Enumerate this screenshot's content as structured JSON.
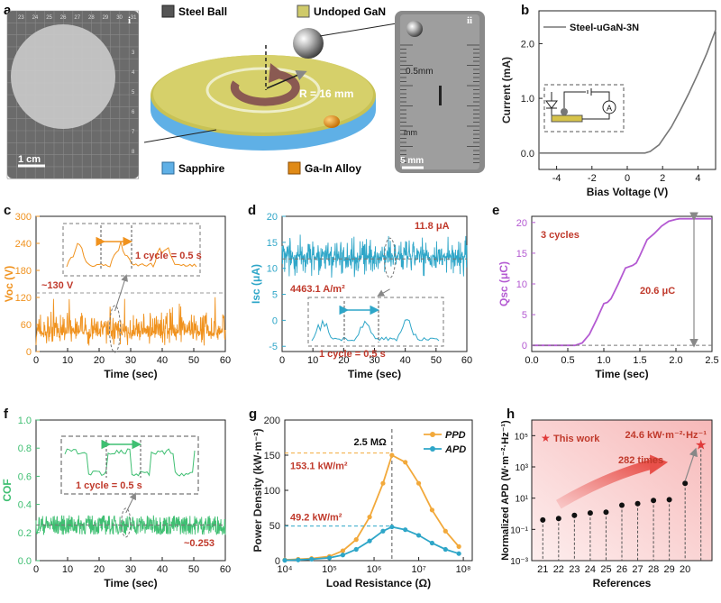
{
  "panel_a": {
    "letter": "a",
    "legend": {
      "steel_ball": "Steel Ball",
      "undoped_gan": "Undoped GaN",
      "sapphire": "Sapphire",
      "ga_in": "Ga-In Alloy"
    },
    "radius_label": "R = 16 mm",
    "inset_i": {
      "tag": "i",
      "scale": "1 cm",
      "ruler_top": [
        "23",
        "24",
        "25",
        "26",
        "27",
        "28",
        "29",
        "30",
        "31"
      ],
      "ruler_left": [
        "3",
        "4",
        "5",
        "6",
        "7",
        "8"
      ]
    },
    "inset_ii": {
      "tag": "ii",
      "scale": "5 mm",
      "mark": "0.5mm",
      "unit": "mm"
    },
    "colors": {
      "disk_top": "#c8c254",
      "sapphire": "#5fb0e6",
      "ring": "#8a5a52",
      "ga_in": "#e08a16"
    }
  },
  "chart_data": [
    {
      "panel": "b",
      "type": "line",
      "xlabel": "Bias Voltage (V)",
      "ylabel": "Current (mA)",
      "xlim": [
        -5,
        5
      ],
      "ylim": [
        -0.3,
        2.6
      ],
      "xticks": [
        "-4",
        "-2",
        "0",
        "2",
        "4"
      ],
      "xtick_values": [
        -4,
        -2,
        0,
        2,
        4
      ],
      "yticks": [
        "0.0",
        "1.0",
        "2.0"
      ],
      "ytick_values": [
        0,
        1,
        2
      ],
      "series": [
        {
          "name": "Steel-uGaN-3N",
          "color": "#777777",
          "x": [
            -5,
            -3,
            -1,
            0,
            1,
            1.3,
            1.8,
            2.5,
            3,
            3.5,
            4,
            4.5,
            5
          ],
          "y": [
            0,
            0,
            0,
            0,
            0,
            0.03,
            0.15,
            0.48,
            0.78,
            1.1,
            1.45,
            1.82,
            2.25
          ]
        }
      ]
    },
    {
      "panel": "c",
      "type": "line",
      "signal": "Voc",
      "ylabel": "Voc (V)",
      "xlabel": "Time (sec)",
      "xlim": [
        0,
        60
      ],
      "ylim": [
        0,
        300
      ],
      "xticks": [
        "0",
        "10",
        "20",
        "30",
        "40",
        "50",
        "60"
      ],
      "xtick_values": [
        0,
        10,
        20,
        30,
        40,
        50,
        60
      ],
      "yticks": [
        "0",
        "60",
        "120",
        "180",
        "240",
        "300"
      ],
      "ytick_values": [
        0,
        60,
        120,
        180,
        240,
        300
      ],
      "color": "#f0921e",
      "peak_label": "~130 V",
      "peak_value": 130,
      "inset_text": "1 cycle = 0.5 s"
    },
    {
      "panel": "d",
      "type": "line",
      "signal": "Isc",
      "ylabel": "Isc (μA)",
      "xlabel": "Time (sec)",
      "xlim": [
        0,
        60
      ],
      "ylim": [
        -6,
        20
      ],
      "xticks": [
        "0",
        "10",
        "20",
        "30",
        "40",
        "50",
        "60"
      ],
      "xtick_values": [
        0,
        10,
        20,
        30,
        40,
        50,
        60
      ],
      "yticks": [
        "-5",
        "0",
        "5",
        "10",
        "15",
        "20"
      ],
      "ytick_values": [
        -5,
        0,
        5,
        10,
        15,
        20
      ],
      "color": "#2ea6c8",
      "peak_label": "11.8 μA",
      "density_label": "4463.1 A/m²",
      "inset_text": "1 cycle = 0.5 s"
    },
    {
      "panel": "e",
      "type": "line",
      "signal": "Qsc",
      "ylabel": "Qsc (μC)",
      "xlabel": "Time (sec)",
      "xlim": [
        0,
        2.5
      ],
      "ylim": [
        -1,
        21
      ],
      "xticks": [
        "0.0",
        "0.5",
        "1.0",
        "1.5",
        "2.0",
        "2.5"
      ],
      "xtick_values": [
        0,
        0.5,
        1,
        1.5,
        2,
        2.5
      ],
      "yticks": [
        "0",
        "5",
        "10",
        "15",
        "20"
      ],
      "ytick_values": [
        0,
        5,
        10,
        15,
        20
      ],
      "color": "#b45ad2",
      "cycles_label": "3 cycles",
      "delta_label": "20.6 μC",
      "x": [
        0,
        0.6,
        0.7,
        0.8,
        0.9,
        1.0,
        1.05,
        1.1,
        1.2,
        1.3,
        1.4,
        1.45,
        1.5,
        1.6,
        1.7,
        1.8,
        1.9,
        2.0,
        2.05,
        2.1,
        2.5
      ],
      "y": [
        0,
        0,
        0.4,
        1.8,
        4.2,
        6.8,
        7.0,
        7.6,
        10.0,
        12.6,
        13.0,
        13.4,
        14.6,
        17.2,
        18.2,
        19.4,
        20.2,
        20.5,
        20.6,
        20.6,
        20.6
      ]
    },
    {
      "panel": "f",
      "type": "line",
      "signal": "COF",
      "ylabel": "COF",
      "xlabel": "Time (sec)",
      "xlim": [
        0,
        60
      ],
      "ylim": [
        0,
        1.0
      ],
      "xticks": [
        "0",
        "10",
        "20",
        "30",
        "40",
        "50",
        "60"
      ],
      "xtick_values": [
        0,
        10,
        20,
        30,
        40,
        50,
        60
      ],
      "yticks": [
        "0.0",
        "0.2",
        "0.4",
        "0.6",
        "0.8",
        "1.0"
      ],
      "ytick_values": [
        0,
        0.2,
        0.4,
        0.6,
        0.8,
        1.0
      ],
      "color": "#3fbf72",
      "mean_label": "~0.253",
      "mean_value": 0.253,
      "inset_text": "1 cycle = 0.5 s"
    },
    {
      "panel": "g",
      "type": "line",
      "xlabel": "Load Resistance (Ω)",
      "ylabel": "Power Density (kW·m⁻²)",
      "xscale": "log",
      "xlim": [
        4,
        8.2
      ],
      "ylim": [
        0,
        200
      ],
      "xticks": [
        "10⁴",
        "10⁵",
        "10⁶",
        "10⁷",
        "10⁸"
      ],
      "xtick_values": [
        4,
        5,
        6,
        7,
        8
      ],
      "yticks": [
        "0",
        "50",
        "100",
        "150",
        "200"
      ],
      "ytick_values": [
        0,
        50,
        100,
        150,
        200
      ],
      "opt_label": "2.5 MΩ",
      "opt_log": 6.4,
      "series": [
        {
          "name": "PPD",
          "color": "#f2a93b",
          "peak_label": "153.1 kW/m²",
          "peak": 153.1,
          "x": [
            4,
            4.3,
            4.6,
            5,
            5.3,
            5.6,
            5.9,
            6.2,
            6.4,
            6.7,
            7,
            7.3,
            7.6,
            7.9
          ],
          "y": [
            1,
            2,
            3,
            6,
            14,
            30,
            62,
            110,
            150,
            140,
            110,
            72,
            42,
            20
          ]
        },
        {
          "name": "APD",
          "color": "#2ea6c8",
          "peak_label": "49.2 kW/m²",
          "peak": 49.2,
          "x": [
            4,
            4.3,
            4.6,
            5,
            5.3,
            5.6,
            5.9,
            6.2,
            6.4,
            6.7,
            7,
            7.3,
            7.6,
            7.9
          ],
          "y": [
            0.5,
            1,
            2,
            4,
            8,
            16,
            28,
            42,
            48,
            44,
            36,
            25,
            16,
            10
          ]
        }
      ]
    },
    {
      "panel": "h",
      "type": "scatter",
      "xlabel": "References",
      "ylabel": "Normalized APD (W·m⁻²·Hz⁻¹)",
      "yscale": "log",
      "ylim": [
        -3,
        6
      ],
      "yticks": [
        "10⁻³",
        "10⁻¹",
        "10¹",
        "10³",
        "10⁵"
      ],
      "ytick_values": [
        -3,
        -1,
        1,
        3,
        5
      ],
      "categories": [
        "21",
        "22",
        "23",
        "24",
        "25",
        "26",
        "27",
        "28",
        "29",
        "20",
        ""
      ],
      "log_values": [
        -0.4,
        -0.3,
        -0.1,
        0.05,
        0.1,
        0.55,
        0.65,
        0.85,
        0.9,
        1.95,
        4.4
      ],
      "this_work": {
        "label": "This work",
        "value_label": "24.6 kW·m⁻²·Hz⁻¹",
        "times_label": "282 times"
      }
    }
  ]
}
